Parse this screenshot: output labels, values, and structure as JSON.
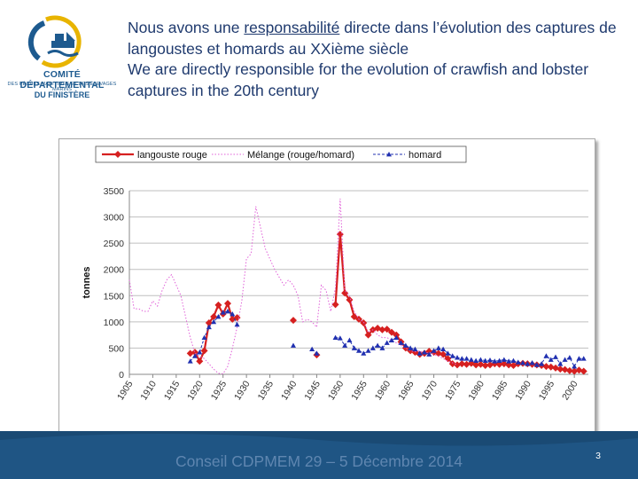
{
  "logo": {
    "line1": "COMITÉ DÉPARTEMENTAL",
    "line2": "DES PÊCHES MARITIMES ET DES ÉLEVAGES MARINS",
    "line3": "DU FINISTÈRE",
    "colors": {
      "navy": "#1d5a8f",
      "gold": "#e8b400"
    }
  },
  "heading": {
    "fr_before": "Nous avons une ",
    "fr_underlined": "responsabilité",
    "fr_after": " directe dans l’évolution des captures de langoustes et homards au XXième  siècle",
    "en": "We are directly responsible for the evolution of crawfish and lobster captures in the 20th century"
  },
  "footer": {
    "title": "Conseil CDPMEM 29 – 5 Décembre 2014",
    "page_number": "3",
    "colors": {
      "band": "#1a4a74",
      "title": "#5f86b0"
    }
  },
  "chart_data": {
    "type": "line",
    "title": "",
    "xlabel": "",
    "ylabel": "tonnes",
    "xlim": [
      1905,
      2003
    ],
    "ylim": [
      0,
      3500
    ],
    "yticks": [
      0,
      500,
      1000,
      1500,
      2000,
      2500,
      3000,
      3500
    ],
    "xticks": [
      1905,
      1910,
      1915,
      1920,
      1925,
      1930,
      1935,
      1940,
      1945,
      1950,
      1955,
      1960,
      1965,
      1970,
      1975,
      1980,
      1985,
      1990,
      1995,
      2000
    ],
    "grid": "horizontal",
    "legend_position": "top",
    "series": [
      {
        "name": "langouste rouge",
        "color": "#d62020",
        "style": "solid-diamond",
        "segments": [
          [
            [
              1918,
              400
            ],
            [
              1919,
              420
            ],
            [
              1920,
              250
            ],
            [
              1921,
              450
            ],
            [
              1922,
              980
            ],
            [
              1923,
              1100
            ],
            [
              1924,
              1320
            ],
            [
              1925,
              1150
            ],
            [
              1926,
              1350
            ],
            [
              1927,
              1050
            ],
            [
              1928,
              1080
            ]
          ],
          [
            [
              1940,
              1030
            ]
          ],
          [
            [
              1945,
              370
            ]
          ],
          [
            [
              1949,
              1330
            ],
            [
              1950,
              2670
            ],
            [
              1951,
              1550
            ],
            [
              1952,
              1420
            ],
            [
              1953,
              1100
            ],
            [
              1954,
              1050
            ],
            [
              1955,
              980
            ],
            [
              1956,
              750
            ],
            [
              1957,
              850
            ],
            [
              1958,
              880
            ],
            [
              1959,
              850
            ],
            [
              1960,
              860
            ],
            [
              1961,
              800
            ],
            [
              1962,
              750
            ],
            [
              1963,
              620
            ],
            [
              1964,
              500
            ],
            [
              1965,
              450
            ],
            [
              1966,
              420
            ],
            [
              1967,
              380
            ],
            [
              1968,
              400
            ],
            [
              1969,
              440
            ],
            [
              1970,
              420
            ],
            [
              1971,
              400
            ],
            [
              1972,
              380
            ],
            [
              1973,
              300
            ],
            [
              1974,
              200
            ],
            [
              1975,
              180
            ],
            [
              1976,
              200
            ],
            [
              1977,
              190
            ],
            [
              1978,
              210
            ],
            [
              1979,
              180
            ],
            [
              1980,
              190
            ],
            [
              1981,
              170
            ],
            [
              1982,
              180
            ],
            [
              1983,
              200
            ],
            [
              1984,
              190
            ],
            [
              1985,
              200
            ],
            [
              1986,
              180
            ],
            [
              1987,
              170
            ],
            [
              1988,
              200
            ],
            [
              1989,
              210
            ],
            [
              1990,
              200
            ],
            [
              1991,
              190
            ],
            [
              1992,
              180
            ],
            [
              1993,
              170
            ],
            [
              1994,
              150
            ],
            [
              1995,
              140
            ],
            [
              1996,
              120
            ],
            [
              1997,
              100
            ],
            [
              1998,
              90
            ],
            [
              1999,
              70
            ],
            [
              2000,
              60
            ],
            [
              2001,
              80
            ],
            [
              2002,
              60
            ]
          ]
        ]
      },
      {
        "name": "Mélange (rouge/homard)",
        "color": "#e060d8",
        "style": "dotted",
        "segments": [
          [
            [
              1905,
              1800
            ],
            [
              1906,
              1250
            ],
            [
              1907,
              1250
            ],
            [
              1908,
              1200
            ],
            [
              1909,
              1200
            ],
            [
              1910,
              1400
            ],
            [
              1911,
              1300
            ],
            [
              1912,
              1600
            ],
            [
              1913,
              1800
            ],
            [
              1914,
              1900
            ],
            [
              1915,
              1700
            ],
            [
              1916,
              1500
            ],
            [
              1917,
              1100
            ],
            [
              1918,
              700
            ],
            [
              1919,
              400
            ],
            [
              1920,
              350
            ],
            [
              1921,
              300
            ],
            [
              1922,
              200
            ],
            [
              1923,
              100
            ],
            [
              1924,
              20
            ],
            [
              1925,
              10
            ],
            [
              1926,
              150
            ],
            [
              1927,
              500
            ],
            [
              1928,
              900
            ],
            [
              1929,
              1400
            ],
            [
              1930,
              2200
            ],
            [
              1931,
              2300
            ],
            [
              1932,
              3200
            ],
            [
              1933,
              2800
            ],
            [
              1934,
              2400
            ],
            [
              1935,
              2200
            ],
            [
              1936,
              2000
            ],
            [
              1937,
              1850
            ],
            [
              1938,
              1700
            ],
            [
              1939,
              1800
            ],
            [
              1940,
              1700
            ],
            [
              1941,
              1500
            ],
            [
              1942,
              1000
            ],
            [
              1943,
              1050
            ],
            [
              1944,
              1000
            ],
            [
              1945,
              900
            ],
            [
              1946,
              1700
            ],
            [
              1947,
              1600
            ],
            [
              1948,
              1200
            ],
            [
              1949,
              1650
            ],
            [
              1950,
              3350
            ],
            [
              1951,
              1600
            ],
            [
              1952,
              1500
            ],
            [
              1953,
              1200
            ],
            [
              1954,
              1050
            ],
            [
              1955,
              1000
            ],
            [
              1956,
              800
            ],
            [
              1957,
              850
            ],
            [
              1958,
              750
            ],
            [
              1959,
              700
            ],
            [
              1960,
              700
            ],
            [
              1961,
              650
            ],
            [
              1962,
              600
            ],
            [
              1963,
              550
            ],
            [
              1964,
              500
            ],
            [
              1965,
              450
            ],
            [
              1966,
              430
            ],
            [
              1967,
              450
            ],
            [
              1968,
              400
            ],
            [
              1969,
              420
            ],
            [
              1970,
              380
            ],
            [
              1971,
              350
            ],
            [
              1972,
              300
            ],
            [
              1973,
              250
            ],
            [
              1974,
              220
            ],
            [
              1975,
              180
            ]
          ]
        ]
      },
      {
        "name": "homard",
        "color": "#2030b0",
        "style": "dashed-triangle",
        "segments": [
          [
            [
              1918,
              250
            ],
            [
              1919,
              350
            ],
            [
              1920,
              420
            ],
            [
              1921,
              700
            ],
            [
              1922,
              900
            ],
            [
              1923,
              1000
            ],
            [
              1924,
              1100
            ],
            [
              1925,
              1180
            ],
            [
              1926,
              1200
            ],
            [
              1927,
              1150
            ],
            [
              1928,
              950
            ]
          ],
          [
            [
              1940,
              550
            ]
          ],
          [
            [
              1944,
              480
            ],
            [
              1945,
              400
            ]
          ],
          [
            [
              1949,
              700
            ],
            [
              1950,
              690
            ],
            [
              1951,
              550
            ],
            [
              1952,
              650
            ],
            [
              1953,
              500
            ],
            [
              1954,
              450
            ],
            [
              1955,
              400
            ],
            [
              1956,
              450
            ],
            [
              1957,
              500
            ],
            [
              1958,
              550
            ],
            [
              1959,
              500
            ],
            [
              1960,
              600
            ],
            [
              1961,
              650
            ],
            [
              1962,
              700
            ],
            [
              1963,
              600
            ],
            [
              1964,
              550
            ],
            [
              1965,
              500
            ],
            [
              1966,
              480
            ],
            [
              1967,
              400
            ],
            [
              1968,
              420
            ],
            [
              1969,
              380
            ],
            [
              1970,
              450
            ],
            [
              1971,
              500
            ],
            [
              1972,
              480
            ],
            [
              1973,
              400
            ],
            [
              1974,
              350
            ],
            [
              1975,
              320
            ],
            [
              1976,
              300
            ],
            [
              1977,
              300
            ],
            [
              1978,
              280
            ],
            [
              1979,
              260
            ],
            [
              1980,
              280
            ],
            [
              1981,
              260
            ],
            [
              1982,
              270
            ],
            [
              1983,
              250
            ],
            [
              1984,
              260
            ],
            [
              1985,
              280
            ],
            [
              1986,
              250
            ],
            [
              1987,
              260
            ],
            [
              1988,
              230
            ],
            [
              1989,
              220
            ],
            [
              1990,
              200
            ],
            [
              1991,
              220
            ],
            [
              1992,
              180
            ],
            [
              1993,
              200
            ],
            [
              1994,
              350
            ],
            [
              1995,
              280
            ],
            [
              1996,
              330
            ],
            [
              1997,
              200
            ],
            [
              1998,
              280
            ],
            [
              1999,
              320
            ],
            [
              2000,
              150
            ],
            [
              2001,
              300
            ],
            [
              2002,
              300
            ]
          ]
        ]
      }
    ]
  }
}
